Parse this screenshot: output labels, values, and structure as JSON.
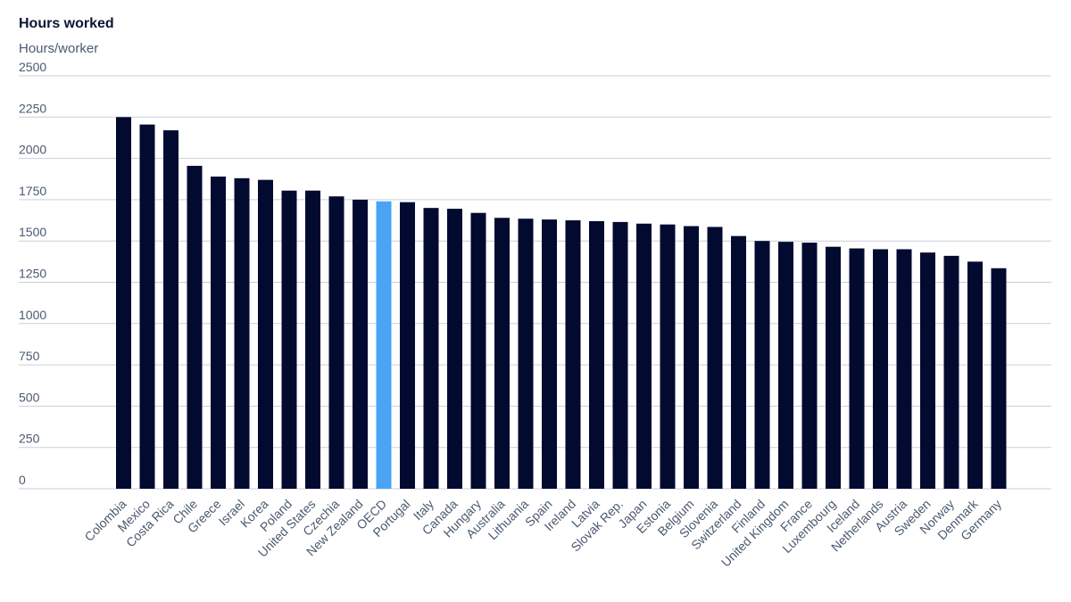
{
  "chart_data": {
    "type": "bar",
    "title": "Hours worked",
    "ylabel": "Hours/worker",
    "xlabel": "",
    "ylim": [
      0,
      2500
    ],
    "yticks": [
      0,
      250,
      500,
      750,
      1000,
      1250,
      1500,
      1750,
      2000,
      2250,
      2500
    ],
    "grid": true,
    "highlight_category": "OECD",
    "colors": {
      "bar": "#030a30",
      "highlight": "#4aa3f5"
    },
    "categories": [
      "Colombia",
      "Mexico",
      "Costa Rica",
      "Chile",
      "Greece",
      "Israel",
      "Korea",
      "Poland",
      "United States",
      "Czechia",
      "New Zealand",
      "OECD",
      "Portugal",
      "Italy",
      "Canada",
      "Hungary",
      "Australia",
      "Lithuania",
      "Spain",
      "Ireland",
      "Latvia",
      "Slovak Rep.",
      "Japan",
      "Estonia",
      "Belgium",
      "Slovenia",
      "Switzerland",
      "Finland",
      "United Kingdom",
      "France",
      "Luxembourg",
      "Iceland",
      "Netherlands",
      "Austria",
      "Sweden",
      "Norway",
      "Denmark",
      "Germany"
    ],
    "values": [
      2250,
      2205,
      2170,
      1955,
      1890,
      1880,
      1870,
      1805,
      1805,
      1770,
      1750,
      1740,
      1735,
      1700,
      1695,
      1670,
      1640,
      1635,
      1630,
      1625,
      1620,
      1615,
      1605,
      1600,
      1590,
      1585,
      1530,
      1500,
      1495,
      1490,
      1465,
      1455,
      1450,
      1450,
      1430,
      1410,
      1375,
      1335
    ]
  }
}
